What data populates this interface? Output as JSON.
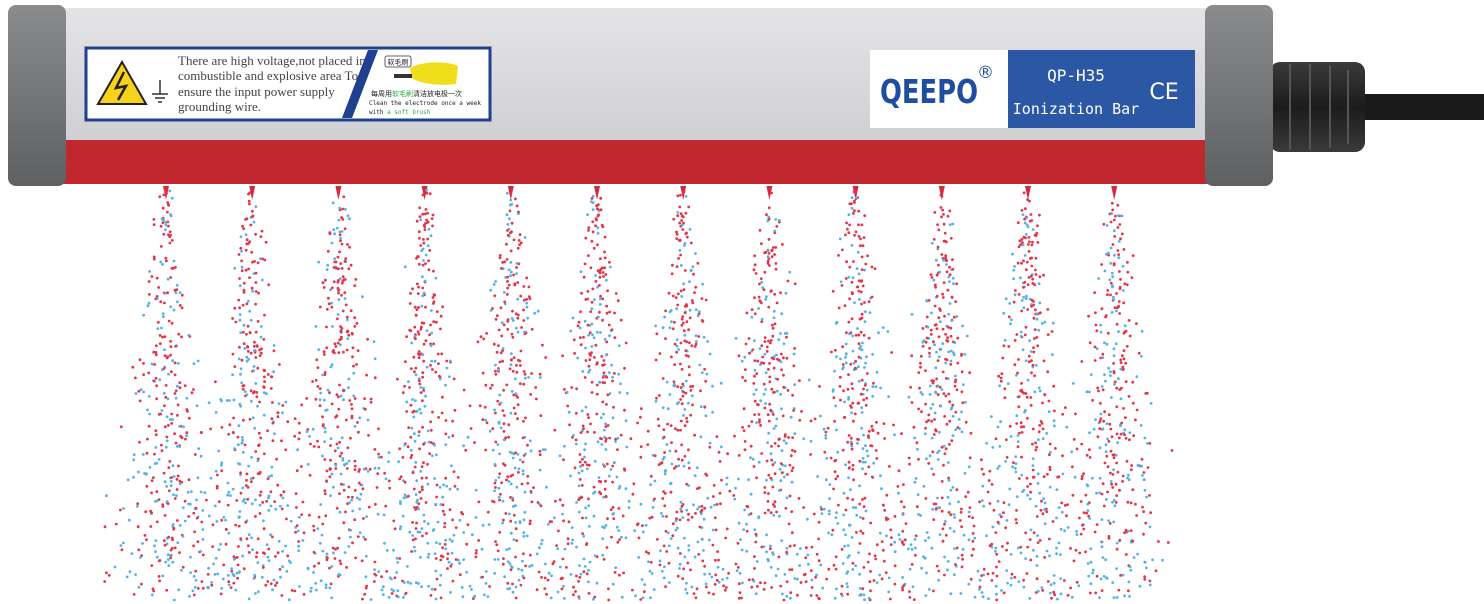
{
  "warning_label": {
    "text_lines": [
      "There are high voltage,not placed in",
      "combustible and explosive area To",
      "ensure the input power supply",
      "grounding wire."
    ],
    "brush_tag": "软毛刷",
    "chinese_note": [
      "每周用",
      "软毛刷",
      "清洁放电极一次"
    ],
    "english_note": [
      "Clean the electrode once a week",
      "with ",
      "a soft brush"
    ]
  },
  "brand": {
    "logo": "QEEPO",
    "registered": "®",
    "model": "QP-H35",
    "product": "Ionization Bar",
    "certification": "CE"
  }
}
